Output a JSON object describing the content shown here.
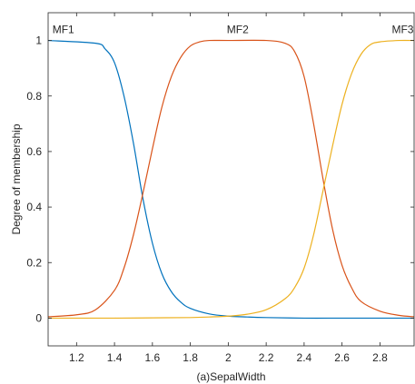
{
  "chart_data": {
    "type": "line",
    "title": "",
    "xlabel": "(a)SepalWidth",
    "ylabel": "Degree of membership",
    "xlim": [
      1.05,
      2.98
    ],
    "ylim": [
      -0.1,
      1.1
    ],
    "xticks": [
      1.2,
      1.4,
      1.6,
      1.8,
      2.0,
      2.2,
      2.4,
      2.6,
      2.8
    ],
    "xtick_labels": [
      "1.2",
      "1.4",
      "1.6",
      "1.8",
      "2",
      "2.2",
      "2.4",
      "2.6",
      "2.8"
    ],
    "yticks": [
      0,
      0.2,
      0.4,
      0.6,
      0.8,
      1.0
    ],
    "ytick_labels": [
      "0",
      "0.2",
      "0.4",
      "0.6",
      "0.8",
      "1"
    ],
    "grid": false,
    "legend": "none",
    "series": [
      {
        "name": "MF1",
        "color": "#0072BD",
        "x": [
          1.05,
          1.3,
          1.35,
          1.4,
          1.45,
          1.5,
          1.55,
          1.6,
          1.65,
          1.7,
          1.75,
          1.8,
          1.9,
          2.0,
          2.1,
          2.2,
          2.4,
          2.6,
          2.8,
          2.98
        ],
        "y": [
          1.0,
          0.99,
          0.97,
          0.92,
          0.8,
          0.63,
          0.43,
          0.27,
          0.16,
          0.095,
          0.057,
          0.035,
          0.015,
          0.007,
          0.004,
          0.002,
          0.0,
          0.0,
          0.0,
          0.0
        ]
      },
      {
        "name": "MF2",
        "color": "#D95319",
        "x": [
          1.05,
          1.2,
          1.3,
          1.4,
          1.45,
          1.5,
          1.55,
          1.6,
          1.65,
          1.7,
          1.75,
          1.8,
          1.85,
          1.9,
          2.0,
          2.2,
          2.3,
          2.35,
          2.4,
          2.45,
          2.5,
          2.55,
          2.6,
          2.65,
          2.7,
          2.8,
          2.9,
          2.98
        ],
        "y": [
          0.005,
          0.012,
          0.03,
          0.1,
          0.18,
          0.3,
          0.45,
          0.61,
          0.76,
          0.87,
          0.94,
          0.98,
          0.995,
          1.0,
          1.0,
          1.0,
          0.99,
          0.96,
          0.87,
          0.7,
          0.5,
          0.32,
          0.19,
          0.11,
          0.06,
          0.025,
          0.01,
          0.005
        ]
      },
      {
        "name": "MF3",
        "color": "#EDB120",
        "x": [
          1.05,
          1.4,
          1.6,
          1.8,
          1.9,
          2.0,
          2.1,
          2.2,
          2.3,
          2.35,
          2.4,
          2.45,
          2.5,
          2.55,
          2.6,
          2.65,
          2.7,
          2.75,
          2.8,
          2.9,
          2.98
        ],
        "y": [
          0.0,
          0.0,
          0.001,
          0.002,
          0.004,
          0.007,
          0.014,
          0.03,
          0.07,
          0.11,
          0.18,
          0.3,
          0.46,
          0.62,
          0.77,
          0.88,
          0.95,
          0.985,
          0.995,
          1.0,
          1.0
        ]
      }
    ],
    "annotations": [
      {
        "text": "MF1",
        "x": 1.13,
        "y": 1.04
      },
      {
        "text": "MF2",
        "x": 2.05,
        "y": 1.04
      },
      {
        "text": "MF3",
        "x": 2.92,
        "y": 1.04
      }
    ]
  }
}
